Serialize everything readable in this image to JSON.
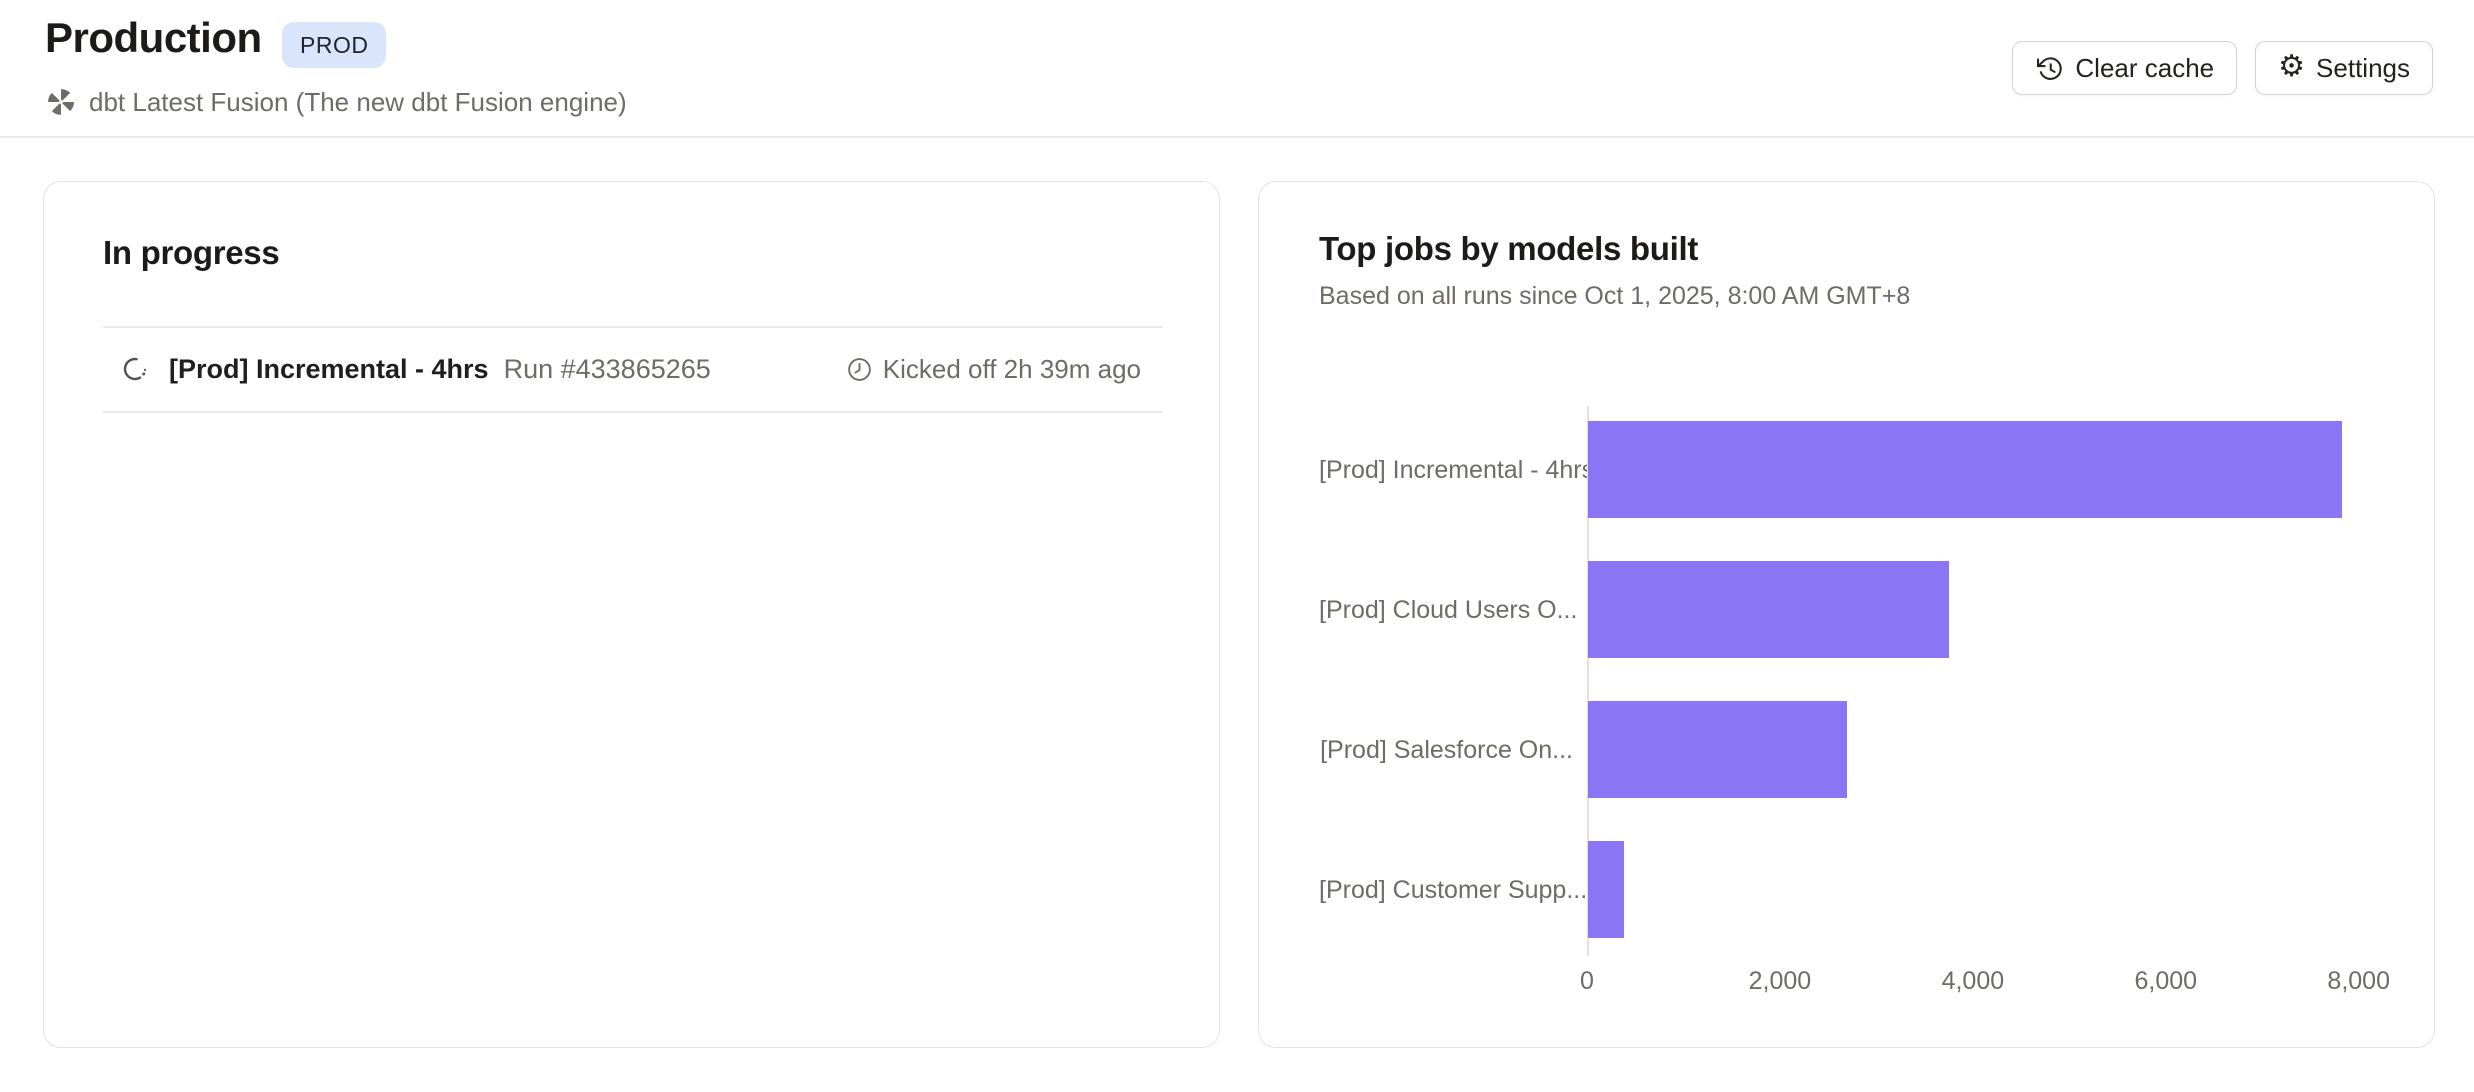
{
  "header": {
    "title": "Production",
    "badge": "PROD",
    "subtitle": "dbt Latest Fusion (The new dbt Fusion engine)",
    "clear_cache_label": "Clear cache",
    "settings_label": "Settings"
  },
  "icons": {
    "gear_glyph": "⚙",
    "names": [
      "dbt-fusion-logo-icon",
      "history-icon",
      "gear-icon",
      "spinner-icon",
      "clock-icon"
    ]
  },
  "in_progress_card": {
    "title": "In progress",
    "run": {
      "job_name": "[Prod] Incremental - 4hrs",
      "run_label": "Run #433865265",
      "kicked_off": "Kicked off 2h 39m ago"
    }
  },
  "top_jobs_card": {
    "title": "Top jobs by models built",
    "subtitle": "Based on all runs since Oct 1, 2025, 8:00 AM GMT+8"
  },
  "chart_data": {
    "type": "bar",
    "orientation": "horizontal",
    "title": "Top jobs by models built",
    "xlabel": "",
    "ylabel": "",
    "categories": [
      "[Prod] Incremental - 4hrs",
      "[Prod] Cloud Users O...",
      "[Prod] Salesforce On...",
      "[Prod] Customer Supp..."
    ],
    "values": [
      7820,
      3740,
      2690,
      370
    ],
    "xticks": [
      0,
      2000,
      4000,
      6000,
      8000
    ],
    "xtick_labels": [
      "0",
      "2,000",
      "4,000",
      "6,000",
      "8,000"
    ],
    "xlim": [
      0,
      8200
    ],
    "grid": false,
    "legend": false,
    "bar_color": "#8a76f4"
  },
  "colors": {
    "accent_bar": "#8a76f4",
    "badge_bg": "#d8e5fa",
    "text_dark": "#1c1b1a",
    "text_gray": "#6f6b66",
    "card_border": "#e5e3e0"
  }
}
